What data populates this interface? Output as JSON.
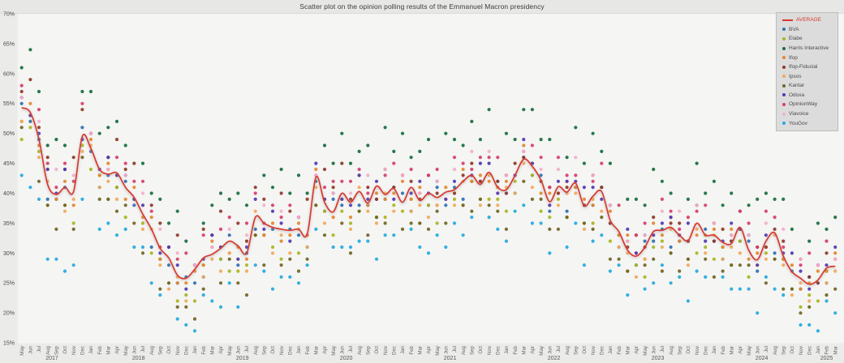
{
  "page": {
    "title": "Scatter plot on the opinion polling results of the Emmanuel Macron presidency"
  },
  "chart_data": {
    "type": "scatter",
    "title": "Scatter plot on the opinion polling results of the Emmanuel Macron presidency",
    "grid": false,
    "legend_position": "top-right",
    "unit": "%",
    "ylim": [
      15,
      70
    ],
    "y_tick_values": [
      70,
      65,
      60,
      55,
      50,
      45,
      40,
      35,
      30,
      25,
      20,
      15
    ],
    "y_tick_labels": [
      "70%",
      "65%",
      "60%",
      "55%",
      "50%",
      "45%",
      "40%",
      "35%",
      "30%",
      "25%",
      "20%",
      "15%"
    ],
    "x_axis": {
      "month_names": [
        "Jan",
        "Feb",
        "Mar",
        "Apr",
        "May",
        "Jun",
        "Jul",
        "Aug",
        "Sep",
        "Oct",
        "Nov",
        "Dec"
      ],
      "start_month_index": 4,
      "years": [
        {
          "label": "2017",
          "months": 8
        },
        {
          "label": "2018",
          "months": 12
        },
        {
          "label": "2019",
          "months": 12
        },
        {
          "label": "2020",
          "months": 12
        },
        {
          "label": "2021",
          "months": 12
        },
        {
          "label": "2022",
          "months": 12
        },
        {
          "label": "2023",
          "months": 12
        },
        {
          "label": "2024",
          "months": 12
        },
        {
          "label": "2025",
          "months": 3
        }
      ]
    },
    "average": {
      "name": "AVERAGE",
      "color": "#d9382d",
      "values": [
        54.3,
        53.5,
        49,
        41.5,
        39.8,
        41,
        40.3,
        49.5,
        47.5,
        44,
        43.2,
        43.4,
        41,
        39.3,
        36.5,
        34,
        30.8,
        29.2,
        26.3,
        25.8,
        27.3,
        29.2,
        29.8,
        30.8,
        32,
        31.2,
        30,
        36,
        35,
        34.3,
        34,
        33.8,
        34,
        33.2,
        42.7,
        38.5,
        36.9,
        40,
        38.5,
        40.3,
        38.4,
        41.2,
        39.8,
        40.8,
        38.5,
        41,
        38.8,
        40,
        39.3,
        40.2,
        40.6,
        42,
        43,
        41.5,
        43.5,
        41,
        40.6,
        43,
        45.7,
        44.5,
        42.2,
        38.6,
        41.1,
        40.2,
        41.7,
        37.9,
        39.5,
        40.3,
        35.5,
        33.6,
        30.5,
        29.5,
        31,
        33.6,
        33.8,
        34.3,
        33,
        32.1,
        35,
        33,
        33,
        31.8,
        31.6,
        34.3,
        30.5,
        28.9,
        32,
        33.4,
        29.5,
        26.9,
        25.8,
        24.8,
        25.5,
        27.5,
        27.8
      ]
    },
    "series": [
      {
        "name": "BVA",
        "color": "#2e6fb2",
        "values": [
          55,
          52,
          49,
          39,
          39,
          41,
          null,
          51,
          47,
          41,
          43,
          41,
          42,
          38,
          null,
          31,
          29,
          28,
          25,
          26,
          25,
          26,
          null,
          29,
          33,
          28,
          30,
          34,
          33,
          34,
          null,
          34,
          33,
          31,
          42,
          37,
          39,
          38,
          null,
          38,
          38,
          39,
          39,
          41,
          40,
          37,
          null,
          38,
          41,
          38,
          41,
          39,
          42,
          42,
          null,
          42,
          40,
          40,
          46,
          43,
          43,
          37,
          null,
          37,
          41,
          38,
          38,
          41,
          35,
          31,
          null,
          28,
          32,
          32,
          34,
          31,
          32,
          32,
          null,
          34,
          32,
          29,
          32,
          32,
          32,
          27,
          null,
          30,
          29,
          27,
          24,
          26,
          25,
          25,
          null
        ]
      },
      {
        "name": "Elabe",
        "color": "#a9b51f",
        "values": [
          49,
          51,
          47,
          38,
          null,
          38,
          35,
          48,
          44,
          43,
          39,
          41,
          36,
          null,
          35,
          30,
          29,
          25,
          22,
          23,
          22,
          28,
          null,
          29,
          27,
          27,
          28,
          33,
          33,
          31,
          29,
          null,
          30,
          33,
          38,
          37,
          33,
          37,
          35,
          37,
          null,
          36,
          36,
          38,
          37,
          39,
          35,
          38,
          35,
          null,
          39,
          38,
          42,
          39,
          39,
          39,
          37,
          42,
          null,
          43,
          37,
          36,
          39,
          36,
          41,
          35,
          35,
          null,
          32,
          33,
          27,
          28,
          26,
          31,
          32,
          30,
          null,
          29,
          30,
          31,
          29,
          31,
          28,
          32,
          26,
          null,
          30,
          29,
          29,
          24,
          21,
          23,
          22,
          27,
          null
        ]
      },
      {
        "name": "Harris Interactive",
        "color": "#176e3e",
        "values": [
          61,
          64,
          57,
          48,
          49,
          48,
          null,
          57,
          57,
          50,
          51,
          52,
          48,
          null,
          45,
          40,
          39,
          35,
          37,
          32,
          null,
          35,
          38,
          40,
          39,
          40,
          38,
          null,
          43,
          41,
          44,
          40,
          43,
          40,
          null,
          48,
          45,
          50,
          45,
          47,
          48,
          null,
          51,
          47,
          50,
          46,
          47,
          49,
          null,
          50,
          49,
          48,
          52,
          49,
          54,
          null,
          50,
          49,
          54,
          54,
          49,
          49,
          null,
          46,
          51,
          45,
          50,
          47,
          45,
          null,
          39,
          39,
          38,
          44,
          42,
          40,
          null,
          39,
          45,
          40,
          42,
          38,
          40,
          null,
          38,
          39,
          40,
          39,
          39,
          34,
          null,
          32,
          35,
          34,
          36
        ]
      },
      {
        "name": "Ifop",
        "color": "#e2862f",
        "values": [
          52,
          55,
          48,
          44,
          39,
          42,
          38,
          null,
          49,
          43,
          45,
          43,
          39,
          41,
          36,
          36,
          29,
          null,
          25,
          25,
          27,
          28,
          32,
          31,
          30,
          31,
          29,
          null,
          33,
          35,
          32,
          33,
          35,
          33,
          44,
          39,
          36,
          null,
          36,
          43,
          38,
          40,
          39,
          40,
          42,
          39,
          41,
          null,
          38,
          41,
          40,
          44,
          42,
          43,
          42,
          41,
          42,
          null,
          48,
          45,
          40,
          40,
          40,
          42,
          41,
          39,
          38,
          null,
          37,
          33,
          33,
          30,
          29,
          35,
          33,
          36,
          32,
          null,
          33,
          33,
          34,
          31,
          34,
          34,
          29,
          30,
          31,
          null,
          29,
          28,
          24,
          25,
          27,
          27,
          30
        ]
      },
      {
        "name": "Ifop-Fiducial",
        "color": "#8e3a28",
        "values": [
          57,
          59,
          51,
          46,
          null,
          44,
          46,
          54,
          50,
          null,
          46,
          49,
          44,
          45,
          null,
          38,
          35,
          31,
          33,
          null,
          28,
          34,
          33,
          37,
          null,
          35,
          32,
          41,
          39,
          null,
          40,
          37,
          36,
          39,
          null,
          44,
          41,
          45,
          39,
          null,
          41,
          39,
          44,
          41,
          null,
          42,
          39,
          43,
          40,
          null,
          40,
          43,
          45,
          42,
          null,
          42,
          40,
          45,
          46,
          null,
          42,
          41,
          40,
          41,
          null,
          38,
          43,
          41,
          35,
          null,
          31,
          33,
          31,
          36,
          null,
          35,
          35,
          32,
          38,
          null,
          32,
          34,
          32,
          37,
          null,
          31,
          31,
          34,
          32,
          null,
          29,
          26,
          25,
          30,
          null
        ]
      },
      {
        "name": "Ipsos",
        "color": "#f0a85a",
        "values": [
          52,
          53,
          46,
          42,
          null,
          37,
          39,
          47,
          48,
          41,
          42,
          39,
          null,
          39,
          34,
          34,
          28,
          24,
          26,
          22,
          null,
          26,
          29,
          27,
          30,
          29,
          27,
          37,
          null,
          30,
          33,
          30,
          34,
          31,
          41,
          35,
          null,
          39,
          34,
          41,
          37,
          35,
          40,
          37,
          null,
          37,
          38,
          36,
          38,
          39,
          38,
          42,
          null,
          38,
          43,
          38,
          41,
          40,
          45,
          41,
          null,
          38,
          38,
          40,
          40,
          34,
          39,
          37,
          null,
          31,
          30,
          26,
          29,
          33,
          31,
          34,
          null,
          28,
          34,
          30,
          33,
          29,
          31,
          30,
          null,
          28,
          29,
          33,
          28,
          23,
          25,
          22,
          null,
          25,
          27
        ]
      },
      {
        "name": "Kantar",
        "color": "#716424",
        "values": [
          51,
          null,
          42,
          38,
          34,
          38,
          34,
          46,
          null,
          39,
          39,
          37,
          38,
          35,
          30,
          null,
          24,
          25,
          21,
          21,
          19,
          24,
          null,
          25,
          29,
          25,
          23,
          33,
          28,
          null,
          28,
          29,
          27,
          29,
          38,
          33,
          null,
          35,
          30,
          37,
          33,
          36,
          35,
          null,
          34,
          35,
          35,
          34,
          37,
          35,
          null,
          38,
          37,
          39,
          38,
          37,
          34,
          null,
          42,
          39,
          39,
          34,
          34,
          36,
          null,
          35,
          34,
          36,
          29,
          29,
          27,
          null,
          28,
          29,
          27,
          30,
          27,
          29,
          null,
          29,
          26,
          27,
          28,
          28,
          28,
          null,
          25,
          29,
          24,
          24,
          20,
          21,
          null,
          23,
          24
        ]
      },
      {
        "name": "Odoxa",
        "color": "#5138b3",
        "values": [
          56,
          53,
          50,
          44,
          40,
          44,
          null,
          49,
          50,
          44,
          46,
          43,
          43,
          39,
          38,
          null,
          30,
          31,
          28,
          24,
          28,
          29,
          33,
          31,
          null,
          29,
          31,
          39,
          34,
          37,
          35,
          32,
          36,
          null,
          45,
          39,
          40,
          39,
          38,
          43,
          39,
          42,
          null,
          39,
          43,
          40,
          42,
          40,
          42,
          39,
          42,
          null,
          43,
          45,
          45,
          40,
          43,
          43,
          49,
          45,
          null,
          38,
          42,
          42,
          42,
          41,
          41,
          39,
          38,
          null,
          34,
          30,
          33,
          33,
          35,
          36,
          33,
          35,
          null,
          32,
          35,
          32,
          35,
          34,
          33,
          28,
          33,
          null,
          30,
          30,
          27,
          24,
          28,
          28,
          31
        ]
      },
      {
        "name": "OpinionWay",
        "color": "#d63d6e",
        "values": [
          58,
          null,
          54,
          45,
          41,
          45,
          42,
          55,
          50,
          null,
          44,
          46,
          45,
          42,
          42,
          37,
          31,
          null,
          29,
          30,
          28,
          33,
          31,
          34,
          36,
          null,
          35,
          40,
          35,
          38,
          36,
          38,
          36,
          null,
          43,
          41,
          42,
          42,
          42,
          44,
          40,
          null,
          43,
          45,
          43,
          44,
          40,
          43,
          44,
          null,
          46,
          45,
          44,
          46,
          46,
          46,
          43,
          null,
          47,
          48,
          46,
          41,
          46,
          43,
          43,
          null,
          42,
          45,
          38,
          38,
          32,
          33,
          35,
          null,
          39,
          37,
          34,
          36,
          37,
          38,
          35,
          null,
          33,
          37,
          35,
          31,
          37,
          36,
          31,
          null,
          28,
          30,
          28,
          32,
          29
        ]
      },
      {
        "name": "Viavoice",
        "color": "#f2aecb",
        "values": [
          56,
          null,
          52,
          null,
          44,
          null,
          43,
          null,
          50,
          null,
          44,
          null,
          43,
          null,
          40,
          null,
          34,
          null,
          30,
          null,
          28,
          null,
          31,
          null,
          34,
          null,
          33,
          null,
          38,
          null,
          37,
          null,
          36,
          null,
          43,
          null,
          40,
          null,
          40,
          null,
          43,
          null,
          44,
          null,
          43,
          null,
          40,
          null,
          42,
          null,
          44,
          null,
          47,
          null,
          47,
          null,
          43,
          null,
          47,
          null,
          44,
          null,
          44,
          null,
          46,
          null,
          43,
          null,
          38,
          null,
          32,
          null,
          33,
          null,
          37,
          null,
          37,
          null,
          38,
          null,
          35,
          null,
          33,
          null,
          33,
          null,
          35,
          null,
          34,
          null,
          29,
          null,
          28,
          null,
          29
        ]
      },
      {
        "name": "YouGov",
        "color": "#23aade",
        "values": [
          43,
          41,
          39,
          29,
          29,
          27,
          28,
          39,
          null,
          34,
          35,
          33,
          34,
          31,
          31,
          25,
          23,
          null,
          19,
          18,
          17,
          23,
          22,
          21,
          25,
          21,
          null,
          28,
          27,
          24,
          26,
          26,
          25,
          28,
          34,
          null,
          31,
          31,
          31,
          32,
          32,
          29,
          33,
          33,
          null,
          34,
          31,
          30,
          33,
          31,
          35,
          33,
          36,
          null,
          36,
          34,
          32,
          37,
          38,
          35,
          35,
          30,
          null,
          31,
          35,
          28,
          32,
          33,
          27,
          28,
          23,
          null,
          24,
          25,
          28,
          25,
          26,
          22,
          27,
          26,
          null,
          26,
          24,
          24,
          24,
          20,
          26,
          24,
          23,
          null,
          18,
          18,
          17,
          22,
          20
        ]
      }
    ]
  }
}
